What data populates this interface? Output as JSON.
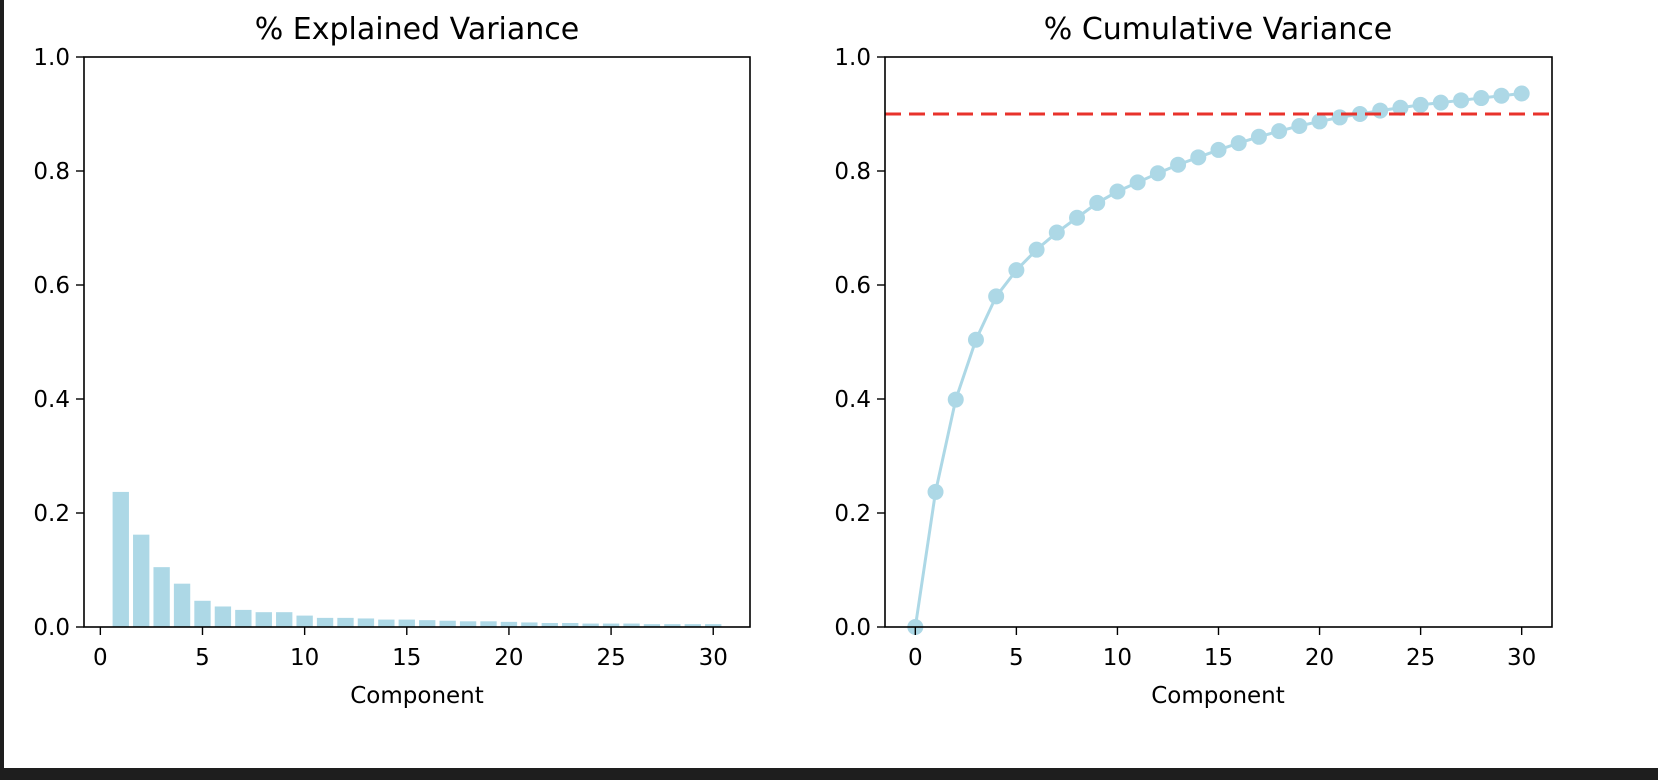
{
  "figure": {
    "background": "#ffffff",
    "page_background": "#1e1e1e"
  },
  "chart_data": [
    {
      "type": "bar",
      "title": "% Explained Variance",
      "xlabel": "Component",
      "ylabel": "",
      "xlim": [
        -0.8,
        31.8
      ],
      "ylim": [
        0,
        1.0
      ],
      "xticks": [
        0,
        5,
        10,
        15,
        20,
        25,
        30
      ],
      "yticks": [
        0.0,
        0.2,
        0.4,
        0.6,
        0.8,
        1.0
      ],
      "xtick_labels": [
        "0",
        "5",
        "10",
        "15",
        "20",
        "25",
        "30"
      ],
      "ytick_labels": [
        "0.0",
        "0.2",
        "0.4",
        "0.6",
        "0.8",
        "1.0"
      ],
      "grid": false,
      "color": "#add8e6",
      "x": [
        1,
        2,
        3,
        4,
        5,
        6,
        7,
        8,
        9,
        10,
        11,
        12,
        13,
        14,
        15,
        16,
        17,
        18,
        19,
        20,
        21,
        22,
        23,
        24,
        25,
        26,
        27,
        28,
        29,
        30
      ],
      "values": [
        0.237,
        0.162,
        0.105,
        0.076,
        0.046,
        0.036,
        0.03,
        0.026,
        0.026,
        0.02,
        0.016,
        0.016,
        0.015,
        0.013,
        0.013,
        0.012,
        0.011,
        0.01,
        0.01,
        0.009,
        0.008,
        0.007,
        0.007,
        0.006,
        0.006,
        0.006,
        0.005,
        0.005,
        0.005,
        0.005
      ]
    },
    {
      "type": "line",
      "title": "% Cumulative Variance",
      "xlabel": "Component",
      "ylabel": "",
      "xlim": [
        -1.5,
        31.5
      ],
      "ylim": [
        0,
        1.0
      ],
      "xticks": [
        0,
        5,
        10,
        15,
        20,
        25,
        30
      ],
      "yticks": [
        0.0,
        0.2,
        0.4,
        0.6,
        0.8,
        1.0
      ],
      "xtick_labels": [
        "0",
        "5",
        "10",
        "15",
        "20",
        "25",
        "30"
      ],
      "ytick_labels": [
        "0.0",
        "0.2",
        "0.4",
        "0.6",
        "0.8",
        "1.0"
      ],
      "grid": false,
      "color": "#add8e6",
      "marker": "circle",
      "x": [
        0,
        1,
        2,
        3,
        4,
        5,
        6,
        7,
        8,
        9,
        10,
        11,
        12,
        13,
        14,
        15,
        16,
        17,
        18,
        19,
        20,
        21,
        22,
        23,
        24,
        25,
        26,
        27,
        28,
        29,
        30
      ],
      "values": [
        0.0,
        0.237,
        0.399,
        0.504,
        0.58,
        0.626,
        0.662,
        0.692,
        0.718,
        0.744,
        0.764,
        0.78,
        0.796,
        0.811,
        0.824,
        0.837,
        0.849,
        0.86,
        0.87,
        0.879,
        0.887,
        0.894,
        0.9,
        0.906,
        0.911,
        0.916,
        0.92,
        0.924,
        0.928,
        0.932,
        0.936
      ],
      "reference_line": {
        "y": 0.9,
        "color": "#e8322b",
        "style": "dashed"
      }
    }
  ]
}
